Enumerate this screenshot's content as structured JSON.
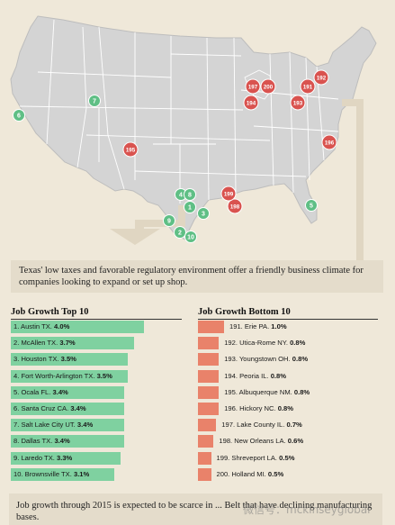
{
  "colors": {
    "background": "#efe8d9",
    "land": "#d4d4d4",
    "state_border": "#ffffff",
    "outline": "#bdbdbd",
    "arrow": "#e0d6c2",
    "top_marker": "#5fbf85",
    "bottom_marker": "#d9534f",
    "top_bar": "#7fd1a0",
    "bottom_bar": "#e9826a"
  },
  "map": {
    "markers_top": [
      "1",
      "2",
      "3",
      "4",
      "5",
      "6",
      "7",
      "8",
      "9",
      "10"
    ],
    "markers_bottom": [
      "191",
      "192",
      "193",
      "194",
      "195",
      "196",
      "197",
      "198",
      "199",
      "200"
    ]
  },
  "callout": {
    "text": "Texas' low taxes and favorable regulatory environment offer a friendly business climate for companies looking to expand or set up shop."
  },
  "chart_data": [
    {
      "type": "bar",
      "orientation": "horizontal",
      "title": "Job Growth Top 10",
      "categories": [
        "1. Austin TX.",
        "2. McAllen TX.",
        "3. Houston TX.",
        "4. Fort Worth-Arlington TX.",
        "5. Ocala FL.",
        "6. Santa Cruz CA.",
        "7. Salt Lake City UT.",
        "8. Dallas TX.",
        "9. Laredo TX.",
        "10. Brownsville TX."
      ],
      "value_labels": [
        "4.0%",
        "3.7%",
        "3.5%",
        "3.5%",
        "3.4%",
        "3.4%",
        "3.4%",
        "3.4%",
        "3.3%",
        "3.1%"
      ],
      "values": [
        4.0,
        3.7,
        3.5,
        3.5,
        3.4,
        3.4,
        3.4,
        3.4,
        3.3,
        3.1
      ]
    },
    {
      "type": "bar",
      "orientation": "horizontal",
      "title": "Job Growth Bottom 10",
      "categories": [
        "191. Erie PA.",
        "192. Utica-Rome NY.",
        "193. Youngstown OH.",
        "194. Peoria IL.",
        "195. Albuquerque NM.",
        "196. Hickory NC.",
        "197. Lake County IL.",
        "198. New Orleans LA.",
        "199. Shreveport LA.",
        "200. Holland MI."
      ],
      "value_labels": [
        "1.0%",
        "0.8%",
        "0.8%",
        "0.8%",
        "0.8%",
        "0.8%",
        "0.7%",
        "0.6%",
        "0.5%",
        "0.5%"
      ],
      "values": [
        1.0,
        0.8,
        0.8,
        0.8,
        0.8,
        0.8,
        0.7,
        0.6,
        0.5,
        0.5
      ]
    }
  ],
  "bottom_note": {
    "text": "Job growth through 2015 is expected to be scarce in ... Belt that have declining manufacturing bases."
  },
  "watermark": "微信号：mckinseyglobal"
}
